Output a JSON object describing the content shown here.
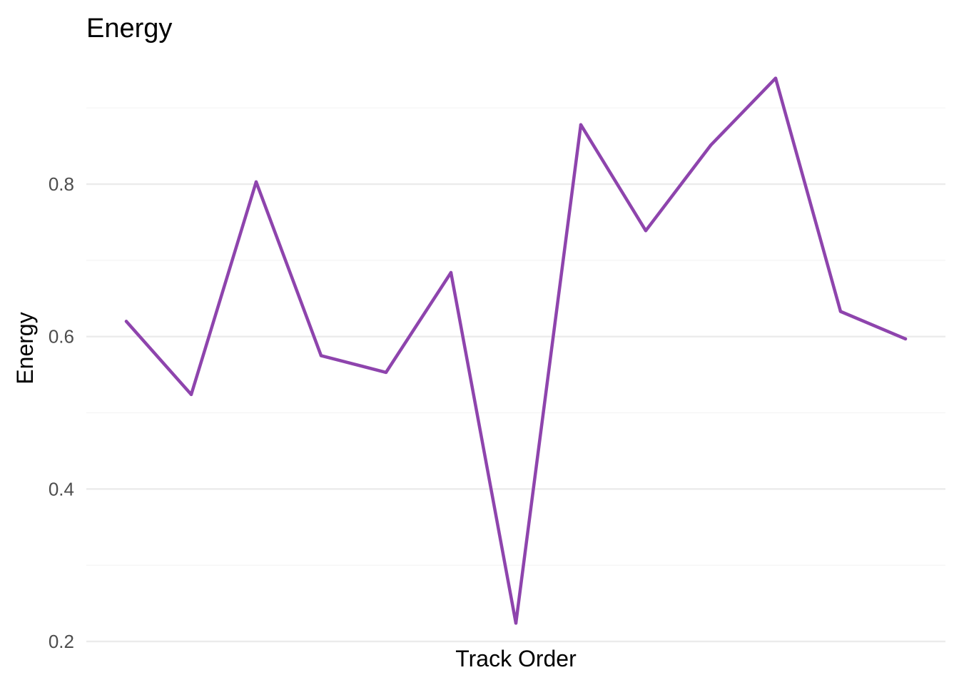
{
  "chart_data": {
    "type": "line",
    "title": "Energy",
    "xlabel": "Track Order",
    "ylabel": "Energy",
    "x": [
      1,
      2,
      3,
      4,
      5,
      6,
      7,
      8,
      9,
      10,
      11,
      12,
      13
    ],
    "series": [
      {
        "values": [
          0.62,
          0.524,
          0.803,
          0.575,
          0.553,
          0.684,
          0.224,
          0.878,
          0.739,
          0.851,
          0.939,
          0.633,
          0.597
        ]
      }
    ],
    "ylim": [
      0.199,
      0.9705
    ],
    "y_ticks": [
      0.2,
      0.4,
      0.6,
      0.8
    ],
    "y_tick_labels": [
      "0.2",
      "0.4",
      "0.6",
      "0.8"
    ],
    "y_minor_ticks": [
      0.3,
      0.5,
      0.7,
      0.9
    ],
    "x_tick_labels_shown": false,
    "grid": true,
    "legend": "none",
    "colors": {
      "line": "#8E44AD",
      "grid_major": "#EBEBEB",
      "grid_minor": "#F4F4F4"
    }
  }
}
